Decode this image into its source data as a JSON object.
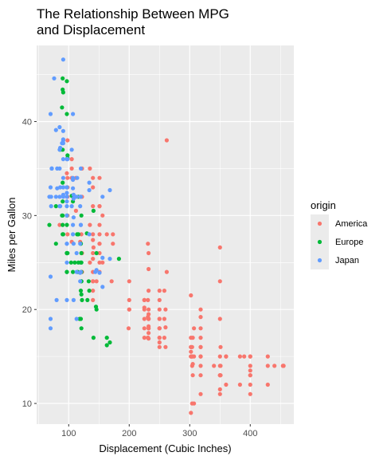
{
  "chart_data": {
    "type": "scatter",
    "title_lines": [
      "The Relationship Between MPG",
      "and Displacement"
    ],
    "xlabel": "Displacement (Cubic Inches)",
    "ylabel": "Miles per Gallon",
    "xlim": [
      47,
      472
    ],
    "ylim": [
      7.8,
      48.1
    ],
    "x_ticks": [
      100,
      200,
      300,
      400
    ],
    "y_ticks": [
      10,
      20,
      30,
      40
    ],
    "grid": true,
    "panel_background": "#ebebeb",
    "legend": {
      "title": "origin",
      "placement": "right"
    },
    "series": [
      {
        "name": "America",
        "color": "#f8766d",
        "points": [
          [
            307,
            18
          ],
          [
            350,
            15
          ],
          [
            318,
            18
          ],
          [
            304,
            16
          ],
          [
            302,
            17
          ],
          [
            429,
            15
          ],
          [
            454,
            14
          ],
          [
            440,
            14
          ],
          [
            455,
            14
          ],
          [
            390,
            15
          ],
          [
            383,
            15
          ],
          [
            340,
            14
          ],
          [
            400,
            15
          ],
          [
            455,
            14
          ],
          [
            232,
            22
          ],
          [
            199,
            18
          ],
          [
            200,
            21
          ],
          [
            250,
            21
          ],
          [
            258,
            19
          ],
          [
            225,
            17
          ],
          [
            250,
            18
          ],
          [
            232,
            19
          ],
          [
            350,
            13
          ],
          [
            400,
            12
          ],
          [
            351,
            13
          ],
          [
            318,
            14
          ],
          [
            304,
            15
          ],
          [
            429,
            12
          ],
          [
            350,
            13
          ],
          [
            350,
            14
          ],
          [
            400,
            13
          ],
          [
            302,
            15
          ],
          [
            318,
            13
          ],
          [
            304,
            14
          ],
          [
            302,
            16
          ],
          [
            250,
            17
          ],
          [
            250,
            19
          ],
          [
            232,
            18
          ],
          [
            140,
            22
          ],
          [
            140,
            28
          ],
          [
            140,
            23
          ],
          [
            97,
            26
          ],
          [
            98,
            28
          ],
          [
            122,
            26
          ],
          [
            140,
            24
          ],
          [
            121,
            28
          ],
          [
            140,
            21
          ],
          [
            156,
            25
          ],
          [
            151,
            26
          ],
          [
            151,
            24
          ],
          [
            151,
            28
          ],
          [
            122,
            32
          ],
          [
            156,
            30
          ],
          [
            232,
            26
          ],
          [
            260,
            16
          ],
          [
            231,
            17
          ],
          [
            250,
            22
          ],
          [
            250,
            20
          ],
          [
            171,
            23
          ],
          [
            200,
            20
          ],
          [
            258,
            22
          ],
          [
            250,
            18
          ],
          [
            250,
            16
          ],
          [
            262,
            24
          ],
          [
            318,
            15
          ],
          [
            350,
            11
          ],
          [
            305,
            13
          ],
          [
            350,
            13
          ],
          [
            400,
            13
          ],
          [
            302,
            15
          ],
          [
            351,
            14
          ],
          [
            318,
            16
          ],
          [
            304,
            15
          ],
          [
            231,
            17
          ],
          [
            225,
            20
          ],
          [
            250,
            19
          ],
          [
            250,
            18
          ],
          [
            151,
            27
          ],
          [
            140,
            23
          ],
          [
            122,
            24
          ],
          [
            85,
            29
          ],
          [
            151,
            29
          ],
          [
            98,
            33
          ],
          [
            105,
            34
          ],
          [
            140,
            26
          ],
          [
            98,
            32
          ],
          [
            151,
            34
          ],
          [
            151,
            31
          ],
          [
            260,
            20
          ],
          [
            318,
            20
          ],
          [
            232,
            18
          ],
          [
            98,
            38
          ],
          [
            105,
            36
          ],
          [
            140,
            31
          ],
          [
            200,
            23
          ],
          [
            232,
            19
          ],
          [
            225,
            21
          ],
          [
            173,
            28
          ],
          [
            151,
            25
          ],
          [
            135,
            35
          ],
          [
            140,
            34
          ],
          [
            98,
            34
          ],
          [
            231,
            27
          ],
          [
            262,
            38
          ],
          [
            350,
            26.6
          ],
          [
            225,
            19
          ],
          [
            173,
            27
          ],
          [
            151,
            31
          ],
          [
            105,
            35
          ],
          [
            163,
            28
          ],
          [
            135,
            25
          ],
          [
            140,
            33
          ],
          [
            200,
            20
          ],
          [
            225,
            18
          ],
          [
            305,
            17
          ],
          [
            318,
            16
          ],
          [
            232,
            19
          ],
          [
            302,
            16
          ],
          [
            307,
            15
          ],
          [
            360,
            15
          ],
          [
            318,
            17
          ],
          [
            400,
            14
          ],
          [
            231,
            21
          ],
          [
            232,
            20
          ],
          [
            232,
            19.5
          ],
          [
            232,
            17.5
          ],
          [
            250,
            17
          ],
          [
            250,
            16.5
          ],
          [
            302,
            15.5
          ],
          [
            305,
            14.2
          ],
          [
            318,
            15
          ],
          [
            351,
            16
          ],
          [
            360,
            15
          ],
          [
            400,
            15
          ],
          [
            225,
            20.2
          ],
          [
            231,
            19.2
          ],
          [
            232,
            18.2
          ],
          [
            258,
            17
          ],
          [
            232,
            16.9
          ],
          [
            140,
            27.4
          ],
          [
            98,
            30
          ],
          [
            151,
            27
          ],
          [
            112,
            34
          ],
          [
            112,
            30.5
          ],
          [
            135,
            29
          ],
          [
            97,
            34.5
          ],
          [
            122,
            35
          ],
          [
            119,
            27.2
          ],
          [
            146,
            23
          ],
          [
            105,
            27.2
          ],
          [
            141,
            26.6
          ],
          [
            140,
            25.4
          ],
          [
            232,
            24.3
          ],
          [
            350,
            23
          ],
          [
            302,
            21.5
          ],
          [
            225,
            21
          ],
          [
            318,
            19.2
          ],
          [
            350,
            19
          ],
          [
            400,
            13.5
          ],
          [
            260,
            18.1
          ],
          [
            302,
            9
          ],
          [
            304,
            10
          ],
          [
            307,
            10
          ],
          [
            318,
            11
          ],
          [
            360,
            12
          ],
          [
            383,
            12
          ],
          [
            400,
            11
          ],
          [
            429,
            14
          ],
          [
            350,
            11.5
          ]
        ]
      },
      {
        "name": "Europe",
        "color": "#00ba38",
        "points": [
          [
            97,
            24
          ],
          [
            97,
            26
          ],
          [
            110,
            25
          ],
          [
            107,
            24
          ],
          [
            104,
            25
          ],
          [
            121,
            26
          ],
          [
            97,
            26
          ],
          [
            91,
            28
          ],
          [
            97,
            26
          ],
          [
            116,
            25
          ],
          [
            121,
            24
          ],
          [
            114,
            28
          ],
          [
            121,
            23
          ],
          [
            90,
            30
          ],
          [
            97,
            29
          ],
          [
            79,
            31
          ],
          [
            120,
            27
          ],
          [
            116,
            28
          ],
          [
            90,
            28
          ],
          [
            120,
            27
          ],
          [
            98,
            26
          ],
          [
            97,
            30
          ],
          [
            90,
            29
          ],
          [
            121,
            25
          ],
          [
            131,
            21
          ],
          [
            133,
            23
          ],
          [
            115,
            24
          ],
          [
            120,
            19
          ],
          [
            146,
            20
          ],
          [
            121,
            18
          ],
          [
            134,
            22
          ],
          [
            163,
            17
          ],
          [
            90,
            31.5
          ],
          [
            89,
            30
          ],
          [
            98,
            36.1
          ],
          [
            90,
            33.5
          ],
          [
            91,
            43.1
          ],
          [
            97,
            44.3
          ],
          [
            90,
            43.4
          ],
          [
            89,
            41.5
          ],
          [
            68,
            29
          ],
          [
            107,
            31.5
          ],
          [
            141,
            30.5
          ],
          [
            130,
            28.1
          ],
          [
            121,
            21.6
          ],
          [
            145,
            20.3
          ],
          [
            163,
            16.2
          ],
          [
            168,
            16.5
          ],
          [
            183,
            25.4
          ],
          [
            121,
            30
          ],
          [
            105,
            32.1
          ],
          [
            90,
            44.6
          ],
          [
            79,
            27
          ],
          [
            97,
            24
          ],
          [
            116,
            32
          ],
          [
            86,
            37
          ],
          [
            98,
            36.4
          ],
          [
            97,
            40.8
          ],
          [
            90,
            37
          ],
          [
            120,
            22
          ],
          [
            121,
            23
          ],
          [
            120,
            25
          ],
          [
            146,
            26
          ],
          [
            118,
            19
          ],
          [
            141,
            17
          ],
          [
            122,
            21
          ]
        ]
      },
      {
        "name": "Japan",
        "color": "#619cff",
        "points": [
          [
            113,
            24
          ],
          [
            97,
            27
          ],
          [
            97,
            27
          ],
          [
            72,
            35
          ],
          [
            71,
            31
          ],
          [
            68,
            32
          ],
          [
            113,
            19
          ],
          [
            71,
            32
          ],
          [
            72,
            35
          ],
          [
            91,
            33
          ],
          [
            85,
            31
          ],
          [
            97,
            31
          ],
          [
            108,
            27
          ],
          [
            97,
            33
          ],
          [
            79,
            32
          ],
          [
            120,
            24
          ],
          [
            119,
            27
          ],
          [
            107,
            28
          ],
          [
            113,
            26
          ],
          [
            91,
            36
          ],
          [
            85,
            32
          ],
          [
            97,
            31.5
          ],
          [
            79,
            39.1
          ],
          [
            85,
            39.4
          ],
          [
            70,
            23.5
          ],
          [
            70,
            18
          ],
          [
            70,
            19
          ],
          [
            80,
            21
          ],
          [
            86,
            31
          ],
          [
            120,
            32
          ],
          [
            70,
            40.8
          ],
          [
            97,
            30
          ],
          [
            134,
            32.7
          ],
          [
            76,
            44.6
          ],
          [
            91,
            46.6
          ],
          [
            107,
            40.8
          ],
          [
            89,
            37.7
          ],
          [
            91,
            39
          ],
          [
            85,
            37
          ],
          [
            97,
            36
          ],
          [
            120,
            29
          ],
          [
            108,
            29.8
          ],
          [
            86,
            33
          ],
          [
            98,
            36
          ],
          [
            113,
            32
          ],
          [
            107,
            34
          ],
          [
            119,
            32
          ],
          [
            81,
            35
          ],
          [
            91,
            32.2
          ],
          [
            134,
            28
          ],
          [
            156,
            25.5
          ],
          [
            114,
            34
          ],
          [
            107,
            29
          ],
          [
            91,
            32
          ],
          [
            119,
            23
          ],
          [
            151,
            23.9
          ],
          [
            97,
            21
          ],
          [
            108,
            21
          ],
          [
            168,
            32.7
          ],
          [
            156,
            32
          ],
          [
            91,
            38
          ],
          [
            105,
            37
          ],
          [
            97,
            32.4
          ],
          [
            85,
            35
          ],
          [
            86,
            37.2
          ],
          [
            91,
            37.7
          ],
          [
            120,
            29
          ],
          [
            108,
            31.8
          ],
          [
            81,
            32.9
          ],
          [
            119,
            23.9
          ],
          [
            168,
            25.4
          ],
          [
            146,
            24.2
          ],
          [
            156,
            22.4
          ],
          [
            134,
            33.5
          ],
          [
            97,
            32
          ],
          [
            70,
            33
          ],
          [
            144,
            24
          ],
          [
            107,
            33.8
          ],
          [
            120,
            35
          ],
          [
            91,
            38.1
          ],
          [
            108,
            32.2
          ],
          [
            97,
            25
          ],
          [
            91,
            34
          ],
          [
            105,
            31
          ],
          [
            119,
            31
          ],
          [
            97,
            33
          ],
          [
            107,
            32.9
          ],
          [
            72,
            35
          ]
        ]
      }
    ]
  }
}
